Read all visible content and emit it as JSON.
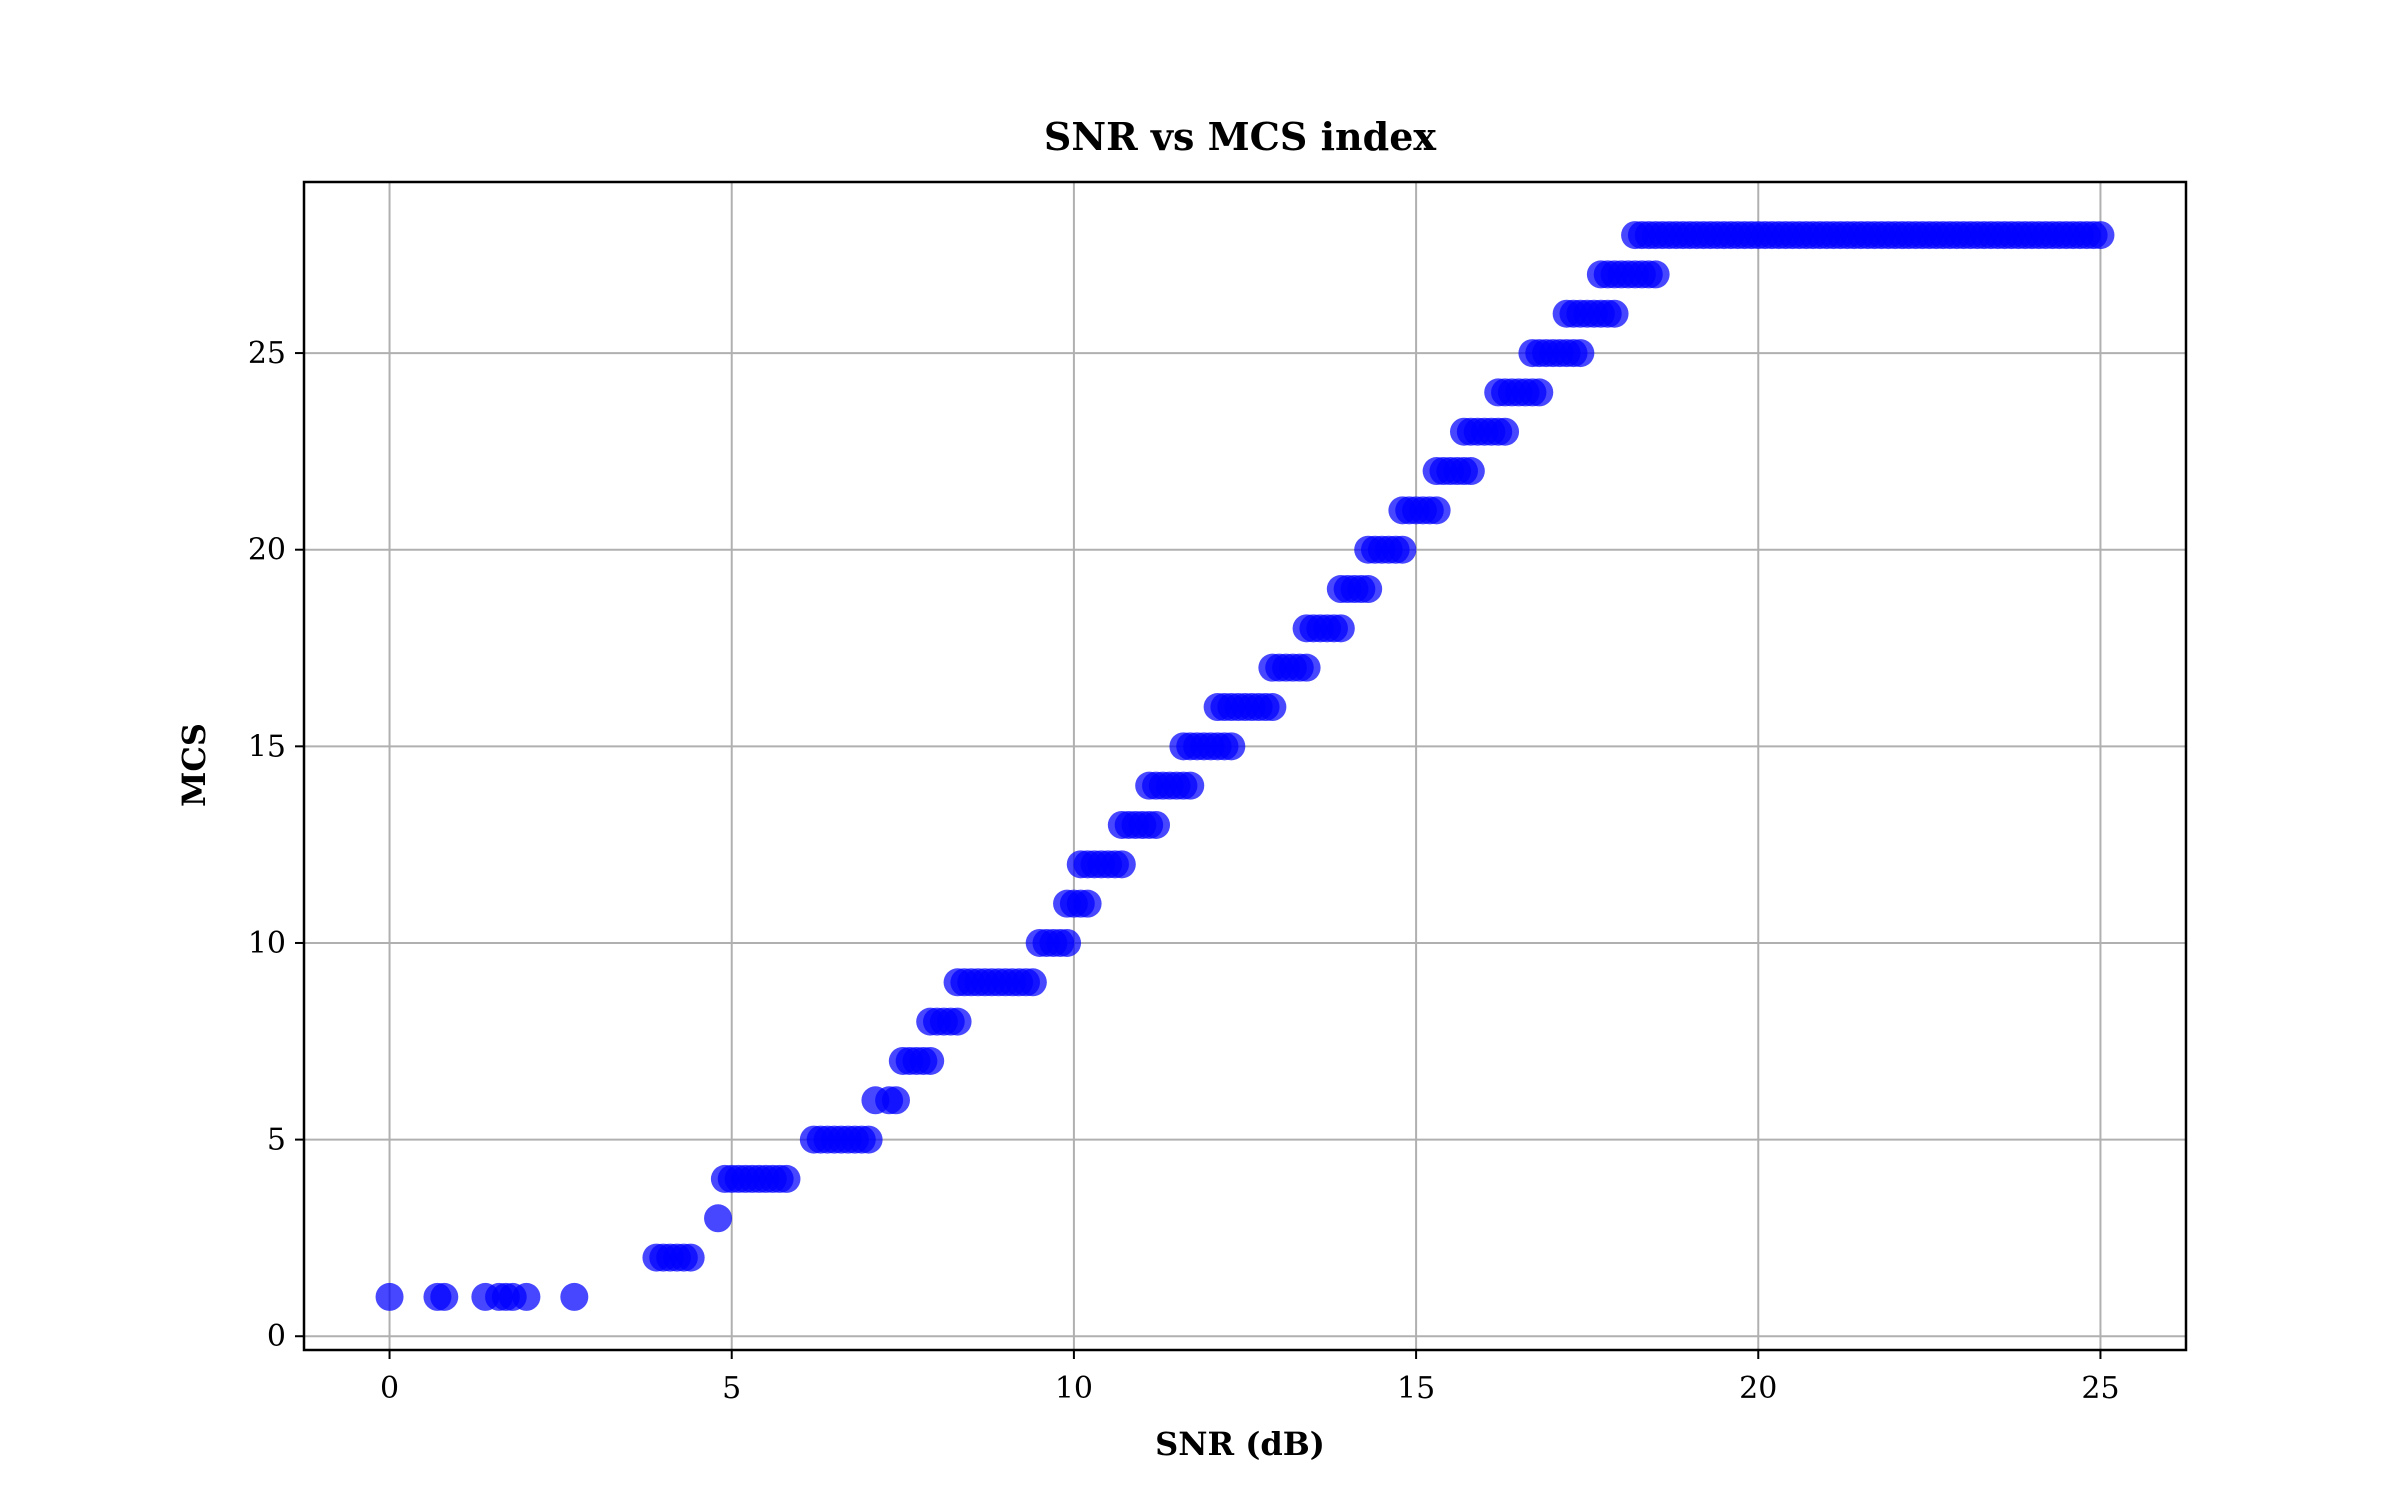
{
  "chart_data": {
    "type": "scatter",
    "title": "SNR vs MCS index",
    "xlabel": "SNR (dB)",
    "ylabel": "MCS",
    "xlim": [
      -1.25,
      26.25
    ],
    "ylim": [
      -0.35,
      29.35
    ],
    "xticks": [
      0,
      5,
      10,
      15,
      20,
      25
    ],
    "yticks": [
      0,
      5,
      10,
      15,
      20,
      25
    ],
    "grid": true,
    "marker_color": "#0000ff",
    "marker_alpha": 0.72,
    "series": [
      {
        "points": [
          [
            0.0,
            1
          ],
          [
            0.7,
            1
          ],
          [
            0.8,
            1
          ],
          [
            1.4,
            1
          ],
          [
            1.6,
            1
          ],
          [
            1.7,
            1
          ],
          [
            1.8,
            1
          ],
          [
            2.0,
            1
          ],
          [
            2.7,
            1
          ],
          [
            3.9,
            2
          ],
          [
            4.0,
            2
          ],
          [
            4.1,
            2
          ],
          [
            4.2,
            2
          ],
          [
            4.3,
            2
          ],
          [
            4.4,
            2
          ],
          [
            4.8,
            3
          ],
          [
            4.9,
            4
          ],
          [
            5.0,
            4
          ],
          [
            5.1,
            4
          ],
          [
            5.2,
            4
          ],
          [
            5.3,
            4
          ],
          [
            5.4,
            4
          ],
          [
            5.5,
            4
          ],
          [
            5.6,
            4
          ],
          [
            5.7,
            4
          ],
          [
            5.8,
            4
          ],
          [
            6.2,
            5
          ],
          [
            6.3,
            5
          ],
          [
            6.4,
            5
          ],
          [
            6.5,
            5
          ],
          [
            6.6,
            5
          ],
          [
            6.7,
            5
          ],
          [
            6.8,
            5
          ],
          [
            6.9,
            5
          ],
          [
            7.0,
            5
          ],
          [
            7.1,
            6
          ],
          [
            7.3,
            6
          ],
          [
            7.4,
            6
          ],
          [
            7.5,
            7
          ],
          [
            7.6,
            7
          ],
          [
            7.7,
            7
          ],
          [
            7.8,
            7
          ],
          [
            7.9,
            7
          ],
          [
            7.9,
            8
          ],
          [
            8.0,
            8
          ],
          [
            8.1,
            8
          ],
          [
            8.2,
            8
          ],
          [
            8.3,
            8
          ],
          [
            8.3,
            9
          ],
          [
            8.4,
            9
          ],
          [
            8.5,
            9
          ],
          [
            8.6,
            9
          ],
          [
            8.7,
            9
          ],
          [
            8.8,
            9
          ],
          [
            8.9,
            9
          ],
          [
            9.0,
            9
          ],
          [
            9.1,
            9
          ],
          [
            9.2,
            9
          ],
          [
            9.3,
            9
          ],
          [
            9.4,
            9
          ],
          [
            9.5,
            10
          ],
          [
            9.6,
            10
          ],
          [
            9.7,
            10
          ],
          [
            9.8,
            10
          ],
          [
            9.9,
            10
          ],
          [
            9.9,
            11
          ],
          [
            10.0,
            11
          ],
          [
            10.1,
            11
          ],
          [
            10.2,
            11
          ],
          [
            10.1,
            12
          ],
          [
            10.2,
            12
          ],
          [
            10.3,
            12
          ],
          [
            10.4,
            12
          ],
          [
            10.5,
            12
          ],
          [
            10.6,
            12
          ],
          [
            10.7,
            12
          ],
          [
            10.7,
            13
          ],
          [
            10.8,
            13
          ],
          [
            10.9,
            13
          ],
          [
            11.0,
            13
          ],
          [
            11.1,
            13
          ],
          [
            11.2,
            13
          ],
          [
            11.1,
            14
          ],
          [
            11.2,
            14
          ],
          [
            11.3,
            14
          ],
          [
            11.4,
            14
          ],
          [
            11.5,
            14
          ],
          [
            11.6,
            14
          ],
          [
            11.7,
            14
          ],
          [
            11.6,
            15
          ],
          [
            11.7,
            15
          ],
          [
            11.8,
            15
          ],
          [
            11.9,
            15
          ],
          [
            12.0,
            15
          ],
          [
            12.1,
            15
          ],
          [
            12.2,
            15
          ],
          [
            12.3,
            15
          ],
          [
            12.1,
            16
          ],
          [
            12.2,
            16
          ],
          [
            12.3,
            16
          ],
          [
            12.4,
            16
          ],
          [
            12.5,
            16
          ],
          [
            12.6,
            16
          ],
          [
            12.7,
            16
          ],
          [
            12.8,
            16
          ],
          [
            12.9,
            16
          ],
          [
            12.9,
            17
          ],
          [
            13.0,
            17
          ],
          [
            13.1,
            17
          ],
          [
            13.2,
            17
          ],
          [
            13.3,
            17
          ],
          [
            13.4,
            17
          ],
          [
            13.4,
            18
          ],
          [
            13.5,
            18
          ],
          [
            13.6,
            18
          ],
          [
            13.7,
            18
          ],
          [
            13.8,
            18
          ],
          [
            13.9,
            18
          ],
          [
            13.9,
            19
          ],
          [
            14.0,
            19
          ],
          [
            14.1,
            19
          ],
          [
            14.2,
            19
          ],
          [
            14.3,
            19
          ],
          [
            14.3,
            20
          ],
          [
            14.4,
            20
          ],
          [
            14.5,
            20
          ],
          [
            14.6,
            20
          ],
          [
            14.7,
            20
          ],
          [
            14.8,
            20
          ],
          [
            14.8,
            21
          ],
          [
            14.9,
            21
          ],
          [
            15.0,
            21
          ],
          [
            15.1,
            21
          ],
          [
            15.2,
            21
          ],
          [
            15.3,
            21
          ],
          [
            15.3,
            22
          ],
          [
            15.4,
            22
          ],
          [
            15.5,
            22
          ],
          [
            15.6,
            22
          ],
          [
            15.7,
            22
          ],
          [
            15.8,
            22
          ],
          [
            15.7,
            23
          ],
          [
            15.8,
            23
          ],
          [
            15.9,
            23
          ],
          [
            16.0,
            23
          ],
          [
            16.1,
            23
          ],
          [
            16.2,
            23
          ],
          [
            16.3,
            23
          ],
          [
            16.2,
            24
          ],
          [
            16.3,
            24
          ],
          [
            16.4,
            24
          ],
          [
            16.5,
            24
          ],
          [
            16.6,
            24
          ],
          [
            16.7,
            24
          ],
          [
            16.8,
            24
          ],
          [
            16.7,
            25
          ],
          [
            16.8,
            25
          ],
          [
            16.9,
            25
          ],
          [
            17.0,
            25
          ],
          [
            17.1,
            25
          ],
          [
            17.2,
            25
          ],
          [
            17.3,
            25
          ],
          [
            17.4,
            25
          ],
          [
            17.2,
            26
          ],
          [
            17.3,
            26
          ],
          [
            17.4,
            26
          ],
          [
            17.5,
            26
          ],
          [
            17.6,
            26
          ],
          [
            17.7,
            26
          ],
          [
            17.8,
            26
          ],
          [
            17.9,
            26
          ],
          [
            17.7,
            27
          ],
          [
            17.8,
            27
          ],
          [
            17.9,
            27
          ],
          [
            18.0,
            27
          ],
          [
            18.1,
            27
          ],
          [
            18.2,
            27
          ],
          [
            18.3,
            27
          ],
          [
            18.4,
            27
          ],
          [
            18.5,
            27
          ],
          [
            18.2,
            28
          ],
          [
            18.3,
            28
          ],
          [
            18.4,
            28
          ],
          [
            18.5,
            28
          ],
          [
            18.6,
            28
          ],
          [
            18.7,
            28
          ],
          [
            18.8,
            28
          ],
          [
            18.9,
            28
          ],
          [
            19.0,
            28
          ],
          [
            19.1,
            28
          ],
          [
            19.2,
            28
          ],
          [
            19.3,
            28
          ],
          [
            19.4,
            28
          ],
          [
            19.5,
            28
          ],
          [
            19.6,
            28
          ],
          [
            19.7,
            28
          ],
          [
            19.8,
            28
          ],
          [
            19.9,
            28
          ],
          [
            20.0,
            28
          ],
          [
            20.1,
            28
          ],
          [
            20.2,
            28
          ],
          [
            20.3,
            28
          ],
          [
            20.4,
            28
          ],
          [
            20.5,
            28
          ],
          [
            20.6,
            28
          ],
          [
            20.7,
            28
          ],
          [
            20.8,
            28
          ],
          [
            20.9,
            28
          ],
          [
            21.0,
            28
          ],
          [
            21.1,
            28
          ],
          [
            21.2,
            28
          ],
          [
            21.3,
            28
          ],
          [
            21.4,
            28
          ],
          [
            21.5,
            28
          ],
          [
            21.6,
            28
          ],
          [
            21.7,
            28
          ],
          [
            21.8,
            28
          ],
          [
            21.9,
            28
          ],
          [
            22.0,
            28
          ],
          [
            22.1,
            28
          ],
          [
            22.2,
            28
          ],
          [
            22.3,
            28
          ],
          [
            22.4,
            28
          ],
          [
            22.5,
            28
          ],
          [
            22.6,
            28
          ],
          [
            22.7,
            28
          ],
          [
            22.8,
            28
          ],
          [
            22.9,
            28
          ],
          [
            23.0,
            28
          ],
          [
            23.1,
            28
          ],
          [
            23.2,
            28
          ],
          [
            23.3,
            28
          ],
          [
            23.4,
            28
          ],
          [
            23.5,
            28
          ],
          [
            23.6,
            28
          ],
          [
            23.7,
            28
          ],
          [
            23.8,
            28
          ],
          [
            23.9,
            28
          ],
          [
            24.0,
            28
          ],
          [
            24.1,
            28
          ],
          [
            24.2,
            28
          ],
          [
            24.3,
            28
          ],
          [
            24.4,
            28
          ],
          [
            24.5,
            28
          ],
          [
            24.6,
            28
          ],
          [
            24.7,
            28
          ],
          [
            24.8,
            28
          ],
          [
            24.9,
            28
          ],
          [
            25.0,
            28
          ]
        ]
      }
    ]
  }
}
